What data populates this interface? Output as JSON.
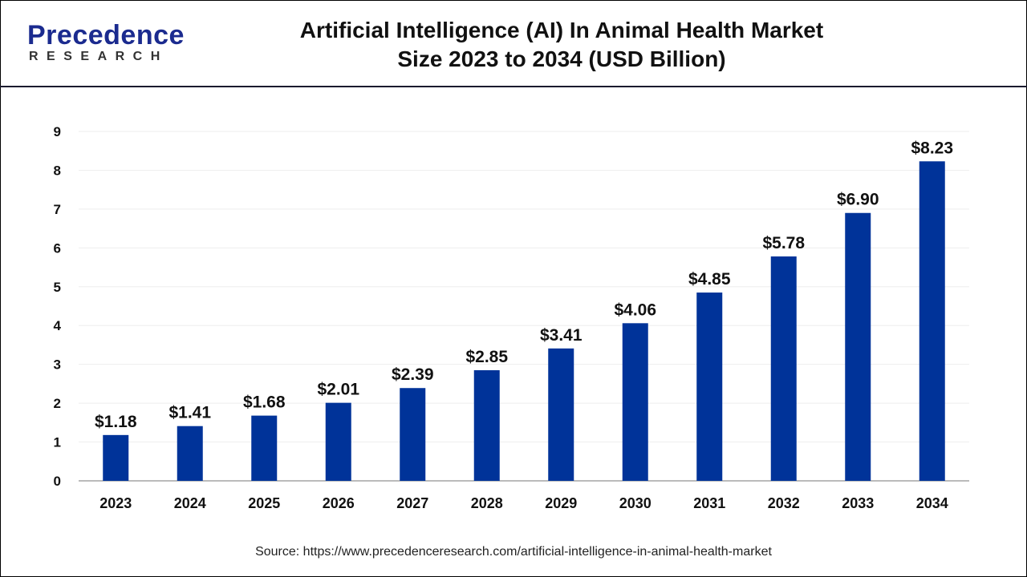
{
  "logo": {
    "main": "Precedence",
    "sub": "RESEARCH"
  },
  "header": {
    "title_line1": "Artificial Intelligence (AI) In Animal Health Market",
    "title_line2": "Size 2023 to 2034 (USD Billion)"
  },
  "source": "Source: https://www.precedenceresearch.com/artificial-intelligence-in-animal-health-market",
  "colors": {
    "bar": "#003399",
    "grid": "#eeeeee",
    "axis": "#bbbbbb"
  },
  "chart_data": {
    "type": "bar",
    "categories": [
      "2023",
      "2024",
      "2025",
      "2026",
      "2027",
      "2028",
      "2029",
      "2030",
      "2031",
      "2032",
      "2033",
      "2034"
    ],
    "values": [
      1.18,
      1.41,
      1.68,
      2.01,
      2.39,
      2.85,
      3.41,
      4.06,
      4.85,
      5.78,
      6.9,
      8.23
    ],
    "data_labels": [
      "$1.18",
      "$1.41",
      "$1.68",
      "$2.01",
      "$2.39",
      "$2.85",
      "$3.41",
      "$4.06",
      "$4.85",
      "$5.78",
      "$6.90",
      "$8.23"
    ],
    "ylim": [
      0,
      9
    ],
    "yticks": [
      0,
      1,
      2,
      3,
      4,
      5,
      6,
      7,
      8,
      9
    ],
    "grid": true,
    "xlabel": "",
    "ylabel": ""
  }
}
